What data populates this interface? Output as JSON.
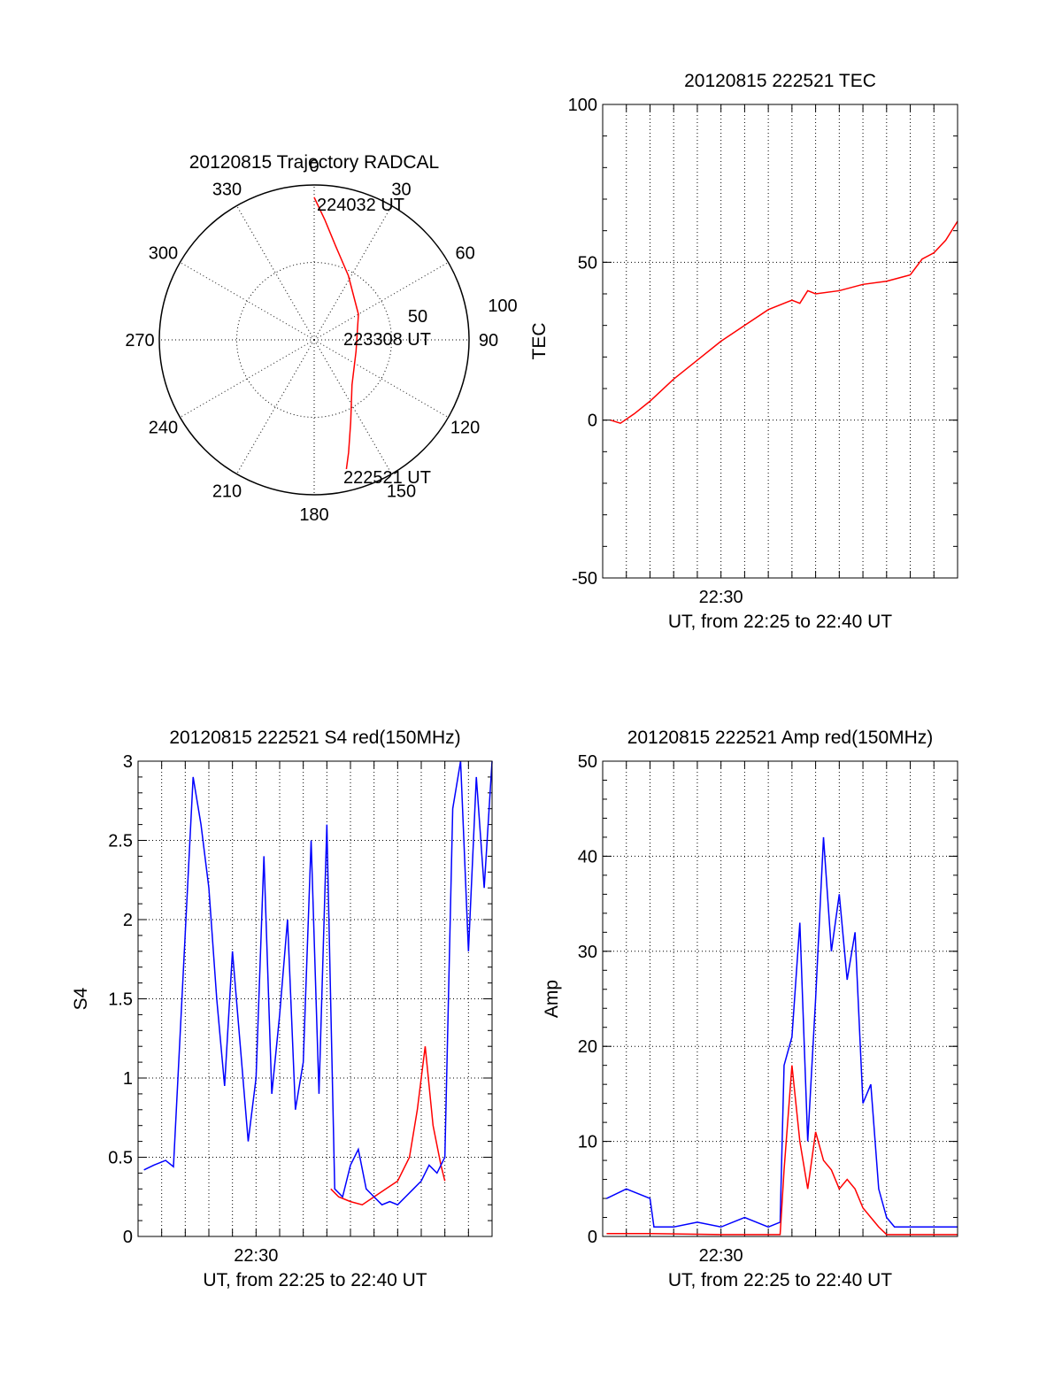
{
  "chart_data": [
    {
      "type": "polar",
      "title": "20120815 Trajectory RADCAL",
      "angle_labels": [
        "0",
        "30",
        "60",
        "90",
        "120",
        "150",
        "180",
        "210",
        "240",
        "270",
        "300",
        "330"
      ],
      "radial_labels": [
        "50",
        "100"
      ],
      "rlim": [
        0,
        100
      ],
      "grid": true,
      "annotations": [
        "224032 UT",
        "223308 UT",
        "222521 UT"
      ],
      "series": [
        {
          "color": "#ff0000",
          "points": [
            {
              "az": 0,
              "zen": 92
            },
            {
              "az": 5,
              "zen": 78
            },
            {
              "az": 13,
              "zen": 62
            },
            {
              "az": 28,
              "zen": 47
            },
            {
              "az": 60,
              "zen": 33
            },
            {
              "az": 105,
              "zen": 28
            },
            {
              "az": 140,
              "zen": 38
            },
            {
              "az": 156,
              "zen": 58
            },
            {
              "az": 163,
              "zen": 76
            },
            {
              "az": 166,
              "zen": 86
            }
          ]
        }
      ]
    },
    {
      "type": "line",
      "title": "20120815 222521 TEC",
      "xlabel": "UT, from 22:25 to 22:40 UT",
      "ylabel": "TEC",
      "xlim": [
        "22:25",
        "22:40"
      ],
      "ylim": [
        -50,
        100
      ],
      "yticks": [
        "-50",
        "0",
        "50",
        "100"
      ],
      "xtick_labels": [
        "22:30"
      ],
      "grid": true,
      "series": [
        {
          "color": "#ff0000",
          "x": [
            "22:25:20",
            "22:25:45",
            "22:26:20",
            "22:27:00",
            "22:28:00",
            "22:29:00",
            "22:30:00",
            "22:31:00",
            "22:32:00",
            "22:33:00",
            "22:33:20",
            "22:33:40",
            "22:34:00",
            "22:35:00",
            "22:36:00",
            "22:37:00",
            "22:38:00",
            "22:38:30",
            "22:39:00",
            "22:39:30",
            "22:40:00"
          ],
          "y": [
            0,
            -1,
            2,
            6,
            13,
            19,
            25,
            30,
            35,
            38,
            37,
            41,
            40,
            41,
            43,
            44,
            46,
            51,
            53,
            57,
            63
          ]
        }
      ]
    },
    {
      "type": "line",
      "title": "20120815 222521 S4 red(150MHz)",
      "xlabel": "UT, from 22:25 to 22:40 UT",
      "ylabel": "S4",
      "xlim": [
        "22:25",
        "22:40"
      ],
      "ylim": [
        0,
        3
      ],
      "yticks": [
        "0",
        "0.5",
        "1",
        "1.5",
        "2",
        "2.5",
        "3"
      ],
      "xtick_labels": [
        "22:30"
      ],
      "grid": true,
      "series": [
        {
          "color": "#ff0000",
          "x": [
            "22:33:10",
            "22:33:30",
            "22:34:00",
            "22:34:30",
            "22:35:00",
            "22:35:30",
            "22:36:00",
            "22:36:30",
            "22:36:50",
            "22:37:10",
            "22:37:30",
            "22:37:50",
            "22:38:00"
          ],
          "y": [
            0.3,
            0.25,
            0.22,
            0.2,
            0.25,
            0.3,
            0.35,
            0.5,
            0.8,
            1.2,
            0.7,
            0.45,
            0.35
          ]
        },
        {
          "color": "#0000ff",
          "x": [
            "22:25:15",
            "22:25:40",
            "22:26:10",
            "22:26:30",
            "22:27:20",
            "22:27:40",
            "22:28:00",
            "22:28:20",
            "22:28:40",
            "22:29:00",
            "22:29:20",
            "22:29:40",
            "22:30:00",
            "22:30:20",
            "22:30:40",
            "22:31:00",
            "22:31:20",
            "22:31:40",
            "22:32:00",
            "22:32:20",
            "22:32:40",
            "22:33:00",
            "22:33:20",
            "22:33:40",
            "22:34:00",
            "22:34:20",
            "22:34:40",
            "22:35:00",
            "22:35:20",
            "22:35:40",
            "22:36:00",
            "22:36:20",
            "22:36:40",
            "22:37:00",
            "22:37:20",
            "22:37:40",
            "22:38:00",
            "22:38:20",
            "22:38:40",
            "22:39:00",
            "22:39:20",
            "22:39:40",
            "22:40:00"
          ],
          "y": [
            0.42,
            0.45,
            0.48,
            0.44,
            2.9,
            2.6,
            2.2,
            1.5,
            0.95,
            1.8,
            1.2,
            0.6,
            1.0,
            2.4,
            0.9,
            1.4,
            2.0,
            0.8,
            1.1,
            2.5,
            0.9,
            2.6,
            0.3,
            0.25,
            0.45,
            0.55,
            0.3,
            0.25,
            0.2,
            0.22,
            0.2,
            0.25,
            0.3,
            0.35,
            0.45,
            0.4,
            0.5,
            2.7,
            3.0,
            1.8,
            2.9,
            2.2,
            3.0
          ]
        }
      ]
    },
    {
      "type": "line",
      "title": "20120815 222521 Amp red(150MHz)",
      "xlabel": "UT, from 22:25 to 22:40 UT",
      "ylabel": "Amp",
      "xlim": [
        "22:25",
        "22:40"
      ],
      "ylim": [
        0,
        50
      ],
      "yticks": [
        "0",
        "10",
        "20",
        "30",
        "40",
        "50"
      ],
      "xtick_labels": [
        "22:30"
      ],
      "grid": true,
      "series": [
        {
          "color": "#0000ff",
          "x": [
            "22:25:10",
            "22:26:00",
            "22:27:00",
            "22:27:10",
            "22:28:00",
            "22:29:00",
            "22:30:00",
            "22:31:00",
            "22:32:00",
            "22:32:30",
            "22:32:40",
            "22:33:00",
            "22:33:20",
            "22:33:40",
            "22:34:00",
            "22:34:20",
            "22:34:40",
            "22:35:00",
            "22:35:20",
            "22:35:40",
            "22:36:00",
            "22:36:20",
            "22:36:40",
            "22:37:00",
            "22:37:20",
            "22:38:00",
            "22:39:00",
            "22:40:00"
          ],
          "y": [
            4,
            5,
            4,
            1,
            1,
            1.5,
            1,
            2,
            1,
            1.5,
            18,
            21,
            33,
            10,
            25,
            42,
            30,
            36,
            27,
            32,
            14,
            16,
            5,
            2,
            1,
            1,
            1,
            1
          ]
        },
        {
          "color": "#ff0000",
          "x": [
            "22:25:10",
            "22:27:00",
            "22:30:00",
            "22:32:30",
            "22:32:40",
            "22:33:00",
            "22:33:20",
            "22:33:40",
            "22:34:00",
            "22:34:20",
            "22:34:40",
            "22:35:00",
            "22:35:20",
            "22:35:40",
            "22:36:00",
            "22:36:20",
            "22:36:40",
            "22:37:00",
            "22:38:00",
            "22:40:00"
          ],
          "y": [
            0.3,
            0.3,
            0.2,
            0.2,
            7,
            18,
            10,
            5,
            11,
            8,
            7,
            5,
            6,
            5,
            3,
            2,
            1,
            0.2,
            0.2,
            0.2
          ]
        }
      ]
    }
  ]
}
